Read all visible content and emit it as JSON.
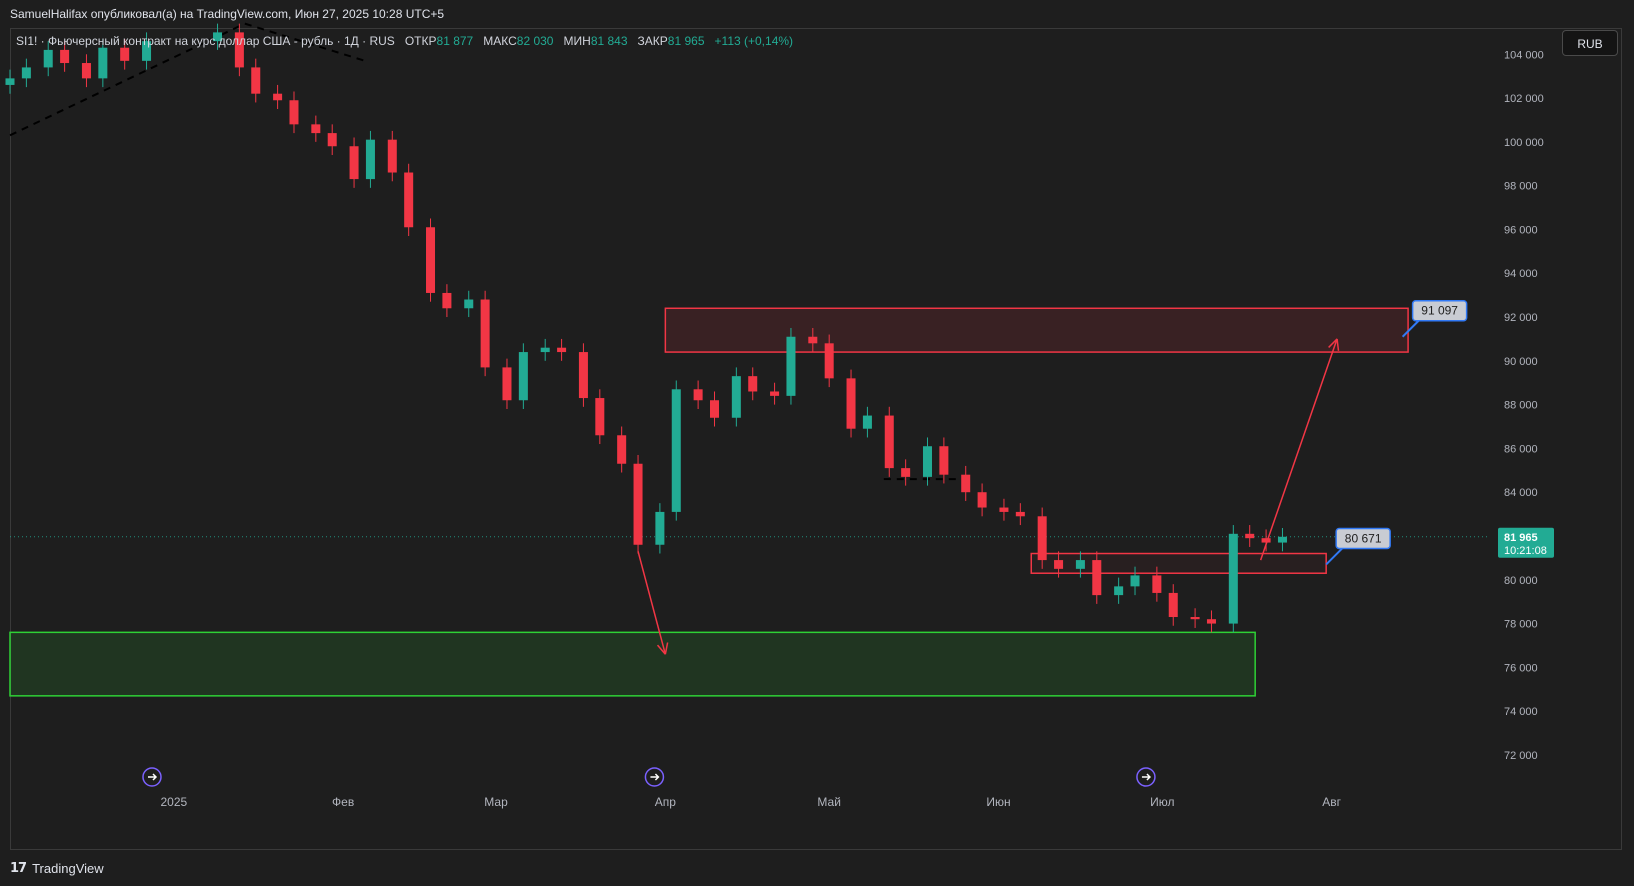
{
  "header": {
    "publish_line": "SamuelHalifax опубликовал(а) на TradingView.com, Июн 27, 2025 10:28 UTC+5"
  },
  "legend": {
    "symbol_desc": "SI1! · Фьючерсный контракт на курс доллар США - рубль · 1Д · RUS",
    "open_label": "ОТКР",
    "open_value": "81 877",
    "high_label": "МАКС",
    "high_value": "82 030",
    "low_label": "МИН",
    "low_value": "81 843",
    "close_label": "ЗАКР",
    "close_value": "81 965",
    "change": "+113 (+0,14%)"
  },
  "currency_button": "RUB",
  "footer": {
    "logo_glyph": "17",
    "brand": "TradingView"
  },
  "colors": {
    "background": "#1e1e1e",
    "up": "#22ab94",
    "down": "#f23645",
    "supply_zone_border": "#f23645",
    "demand_zone_border": "#2ed135",
    "label_blue": "#3179f5",
    "event_icon": "#7b61ff"
  },
  "chart_data": {
    "type": "candlestick",
    "symbol": "SI1!",
    "currency": "RUB",
    "ylim": [
      70400,
      105200
    ],
    "y_ticks": [
      104000,
      102000,
      100000,
      98000,
      96000,
      94000,
      92000,
      90000,
      88000,
      86000,
      84000,
      82000,
      80000,
      78000,
      76000,
      74000,
      72000
    ],
    "y_tick_labels": [
      "104 000",
      "102 000",
      "100 000",
      "98 000",
      "96 000",
      "94 000",
      "92 000",
      "90 000",
      "88 000",
      "86 000",
      "84 000",
      "82 000",
      "80 000",
      "78 000",
      "76 000",
      "74 000",
      "72 000"
    ],
    "x_range": [
      "2024-12-02",
      "2025-08-30"
    ],
    "x_ticks": [
      {
        "date": "2025-01-01",
        "label": "2025"
      },
      {
        "date": "2025-02-01",
        "label": "Фев"
      },
      {
        "date": "2025-03-01",
        "label": "Мар"
      },
      {
        "date": "2025-04-01",
        "label": "Апр"
      },
      {
        "date": "2025-05-01",
        "label": "Май"
      },
      {
        "date": "2025-06-01",
        "label": "Июн"
      },
      {
        "date": "2025-07-01",
        "label": "Июл"
      },
      {
        "date": "2025-08-01",
        "label": "Авг"
      }
    ],
    "last_price": {
      "value": 81965,
      "label": "81 965",
      "countdown": "10:21:08"
    },
    "closes": [
      {
        "date": "2024-12-02",
        "close": 102900
      },
      {
        "date": "2024-12-05",
        "close": 103400
      },
      {
        "date": "2024-12-09",
        "close": 104200
      },
      {
        "date": "2024-12-12",
        "close": 103600
      },
      {
        "date": "2024-12-16",
        "close": 102900
      },
      {
        "date": "2024-12-19",
        "close": 104300
      },
      {
        "date": "2024-12-23",
        "close": 103700
      },
      {
        "date": "2024-12-27",
        "close": 104600
      },
      {
        "date": "2025-01-09",
        "close": 105000
      },
      {
        "date": "2025-01-13",
        "close": 103400
      },
      {
        "date": "2025-01-16",
        "close": 102200
      },
      {
        "date": "2025-01-20",
        "close": 101900
      },
      {
        "date": "2025-01-23",
        "close": 100800
      },
      {
        "date": "2025-01-27",
        "close": 100400
      },
      {
        "date": "2025-01-30",
        "close": 99800
      },
      {
        "date": "2025-02-03",
        "close": 98300
      },
      {
        "date": "2025-02-06",
        "close": 100100
      },
      {
        "date": "2025-02-10",
        "close": 98600
      },
      {
        "date": "2025-02-13",
        "close": 96100
      },
      {
        "date": "2025-02-17",
        "close": 93100
      },
      {
        "date": "2025-02-20",
        "close": 92400
      },
      {
        "date": "2025-02-24",
        "close": 92800
      },
      {
        "date": "2025-02-27",
        "close": 89700
      },
      {
        "date": "2025-03-03",
        "close": 88200
      },
      {
        "date": "2025-03-06",
        "close": 90400
      },
      {
        "date": "2025-03-10",
        "close": 90600
      },
      {
        "date": "2025-03-13",
        "close": 90400
      },
      {
        "date": "2025-03-17",
        "close": 88300
      },
      {
        "date": "2025-03-20",
        "close": 86600
      },
      {
        "date": "2025-03-24",
        "close": 85300
      },
      {
        "date": "2025-03-27",
        "close": 81600
      },
      {
        "date": "2025-03-31",
        "close": 83100
      },
      {
        "date": "2025-04-03",
        "close": 88700
      },
      {
        "date": "2025-04-07",
        "close": 88200
      },
      {
        "date": "2025-04-10",
        "close": 87400
      },
      {
        "date": "2025-04-14",
        "close": 89300
      },
      {
        "date": "2025-04-17",
        "close": 88600
      },
      {
        "date": "2025-04-21",
        "close": 88400
      },
      {
        "date": "2025-04-24",
        "close": 91100
      },
      {
        "date": "2025-04-28",
        "close": 90800
      },
      {
        "date": "2025-05-01",
        "close": 89200
      },
      {
        "date": "2025-05-05",
        "close": 86900
      },
      {
        "date": "2025-05-08",
        "close": 87500
      },
      {
        "date": "2025-05-12",
        "close": 85100
      },
      {
        "date": "2025-05-15",
        "close": 84700
      },
      {
        "date": "2025-05-19",
        "close": 86100
      },
      {
        "date": "2025-05-22",
        "close": 84800
      },
      {
        "date": "2025-05-26",
        "close": 84000
      },
      {
        "date": "2025-05-29",
        "close": 83300
      },
      {
        "date": "2025-06-02",
        "close": 83100
      },
      {
        "date": "2025-06-05",
        "close": 82900
      },
      {
        "date": "2025-06-09",
        "close": 80900
      },
      {
        "date": "2025-06-12",
        "close": 80500
      },
      {
        "date": "2025-06-16",
        "close": 80900
      },
      {
        "date": "2025-06-19",
        "close": 79300
      },
      {
        "date": "2025-06-23",
        "close": 79700
      },
      {
        "date": "2025-06-26",
        "close": 80200
      },
      {
        "date": "2025-06-30",
        "close": 79400
      },
      {
        "date": "2025-07-03",
        "close": 78300
      },
      {
        "date": "2025-07-07",
        "close": 78200
      },
      {
        "date": "2025-07-10",
        "close": 78000
      },
      {
        "date": "2025-07-14",
        "close": 82100
      },
      {
        "date": "2025-07-17",
        "close": 81900
      },
      {
        "date": "2025-07-20",
        "close": 81700
      },
      {
        "date": "2025-07-23",
        "close": 81965
      }
    ],
    "zones": [
      {
        "kind": "supply",
        "from": "2025-04-01",
        "to": "2025-08-15",
        "low": 90400,
        "high": 92400
      },
      {
        "kind": "resistance",
        "from": "2025-06-07",
        "to": "2025-07-31",
        "low": 80300,
        "high": 81200
      },
      {
        "kind": "demand",
        "from": "2024-12-02",
        "to": "2025-07-18",
        "low": 74700,
        "high": 77600
      }
    ],
    "arrows": [
      {
        "from": {
          "date": "2025-03-27",
          "value": 81300
        },
        "to": {
          "date": "2025-04-01",
          "value": 76600
        }
      },
      {
        "from": {
          "date": "2025-07-19",
          "value": 80900
        },
        "to": {
          "date": "2025-08-02",
          "value": 91000
        }
      }
    ],
    "price_labels": [
      {
        "text": "91 097",
        "anchor": {
          "date": "2025-08-14",
          "value": 91100
        }
      },
      {
        "text": "80 671",
        "anchor": {
          "date": "2025-07-31",
          "value": 80700
        }
      }
    ],
    "dashed_lines": [
      {
        "from": {
          "date": "2024-12-02",
          "value": 100300
        },
        "to": {
          "date": "2025-01-14",
          "value": 105400
        }
      },
      {
        "from": {
          "date": "2025-01-14",
          "value": 105400
        },
        "to": {
          "date": "2025-02-05",
          "value": 103700
        }
      },
      {
        "from": {
          "date": "2025-05-11",
          "value": 84600
        },
        "to": {
          "date": "2025-05-25",
          "value": 84600
        }
      }
    ],
    "event_markers": [
      {
        "date": "2024-12-28"
      },
      {
        "date": "2025-03-30"
      },
      {
        "date": "2025-06-28"
      }
    ]
  }
}
